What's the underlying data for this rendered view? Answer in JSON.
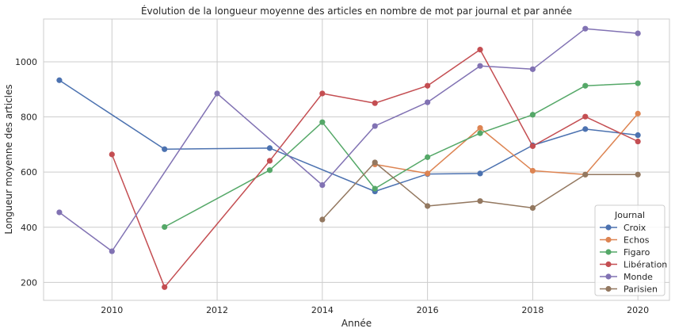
{
  "chart_data": {
    "type": "line",
    "title": "Évolution de la longueur moyenne des articles en nombre de mot par journal et par année",
    "xlabel": "Année",
    "ylabel": "Longueur moyenne des articles",
    "xlim": [
      2008.7,
      2020.6
    ],
    "ylim": [
      135,
      1155
    ],
    "x_ticks": [
      2010,
      2012,
      2014,
      2016,
      2018,
      2020
    ],
    "y_ticks": [
      200,
      400,
      600,
      800,
      1000
    ],
    "grid": true,
    "legend": {
      "title": "Journal",
      "position": "bottom-right"
    },
    "series": [
      {
        "name": "Croix",
        "color": "#4c72b0",
        "points": [
          [
            2009,
            933
          ],
          [
            2011,
            683
          ],
          [
            2013,
            687
          ],
          [
            2015,
            530
          ],
          [
            2016,
            593
          ],
          [
            2017,
            595
          ],
          [
            2018,
            697
          ],
          [
            2019,
            756
          ],
          [
            2020,
            734
          ]
        ]
      },
      {
        "name": "Echos",
        "color": "#dd8452",
        "points": [
          [
            2015,
            628
          ],
          [
            2016,
            595
          ],
          [
            2017,
            760
          ],
          [
            2018,
            605
          ],
          [
            2019,
            591
          ],
          [
            2020,
            812
          ]
        ]
      },
      {
        "name": "Figaro",
        "color": "#55a868",
        "points": [
          [
            2011,
            401
          ],
          [
            2013,
            607
          ],
          [
            2014,
            781
          ],
          [
            2015,
            540
          ],
          [
            2016,
            654
          ],
          [
            2017,
            741
          ],
          [
            2018,
            808
          ],
          [
            2019,
            913
          ],
          [
            2020,
            922
          ]
        ]
      },
      {
        "name": "Libération",
        "color": "#c44e52",
        "points": [
          [
            2010,
            664
          ],
          [
            2011,
            183
          ],
          [
            2013,
            641
          ],
          [
            2014,
            885
          ],
          [
            2015,
            850
          ],
          [
            2016,
            913
          ],
          [
            2017,
            1044
          ],
          [
            2018,
            694
          ],
          [
            2019,
            801
          ],
          [
            2020,
            711
          ]
        ]
      },
      {
        "name": "Monde",
        "color": "#8172b3",
        "points": [
          [
            2009,
            454
          ],
          [
            2010,
            313
          ],
          [
            2012,
            885
          ],
          [
            2014,
            553
          ],
          [
            2015,
            767
          ],
          [
            2016,
            853
          ],
          [
            2017,
            985
          ],
          [
            2018,
            973
          ],
          [
            2019,
            1120
          ],
          [
            2020,
            1103
          ]
        ]
      },
      {
        "name": "Parisien",
        "color": "#937860",
        "points": [
          [
            2014,
            428
          ],
          [
            2015,
            635
          ],
          [
            2016,
            477
          ],
          [
            2017,
            495
          ],
          [
            2018,
            470
          ],
          [
            2019,
            591
          ],
          [
            2020,
            591
          ]
        ]
      }
    ]
  }
}
